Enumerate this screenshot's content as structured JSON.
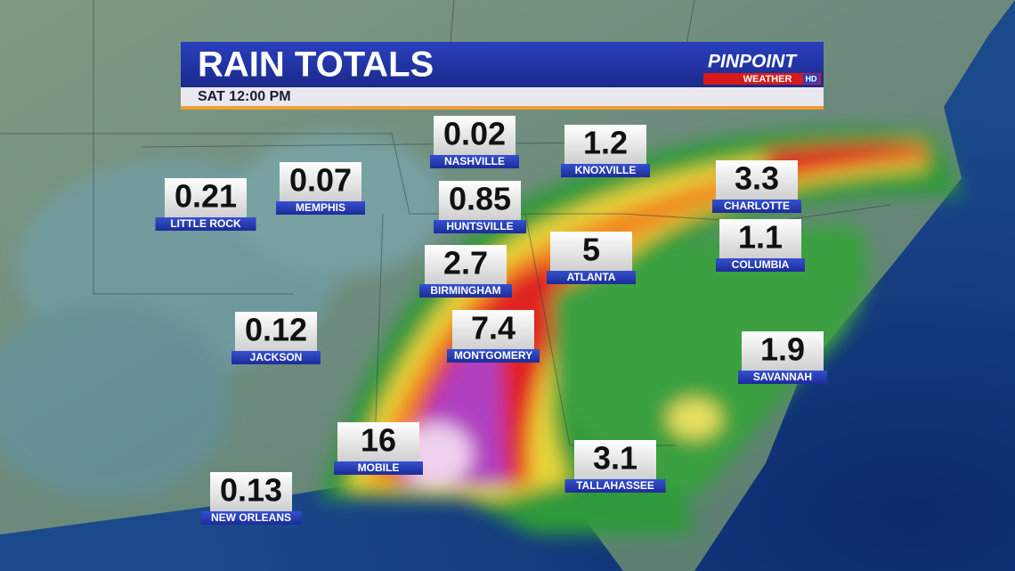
{
  "header": {
    "title": "RAIN TOTALS",
    "time": "SAT 12:00 PM",
    "logo": {
      "brand": "PINPOINT",
      "sub": "WEATHER",
      "badge": "HD"
    }
  },
  "cities": [
    {
      "name": "NASHVILLE",
      "total": 0.02
    },
    {
      "name": "KNOXVILLE",
      "total": 1.2
    },
    {
      "name": "LITTLE ROCK",
      "total": 0.21
    },
    {
      "name": "MEMPHIS",
      "total": 0.07
    },
    {
      "name": "HUNTSVILLE",
      "total": 0.85
    },
    {
      "name": "CHARLOTTE",
      "total": 3.3
    },
    {
      "name": "ATLANTA",
      "total": 5
    },
    {
      "name": "COLUMBIA",
      "total": 1.1
    },
    {
      "name": "BIRMINGHAM",
      "total": 2.7
    },
    {
      "name": "MONTGOMERY",
      "total": 7.4
    },
    {
      "name": "JACKSON",
      "total": 0.12
    },
    {
      "name": "SAVANNAH",
      "total": 1.9
    },
    {
      "name": "MOBILE",
      "total": 16
    },
    {
      "name": "TALLAHASSEE",
      "total": 3.1
    },
    {
      "name": "NEW ORLEANS",
      "total": 0.13
    }
  ]
}
